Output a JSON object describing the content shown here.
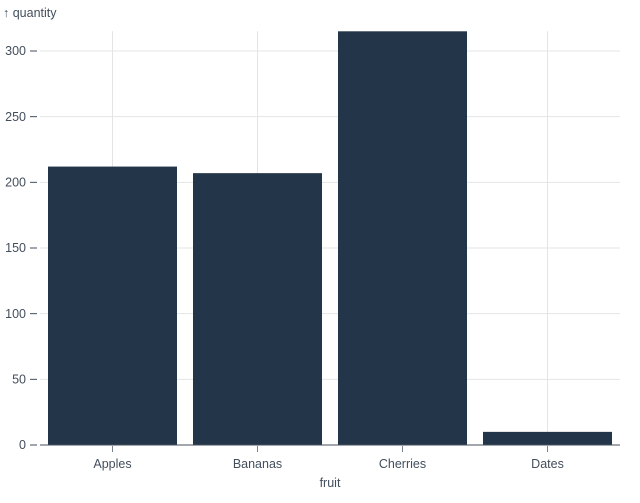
{
  "chart_data": {
    "type": "bar",
    "title": "",
    "y_axis_label": "↑ quantity",
    "x_axis_label": "fruit",
    "categories": [
      "Apples",
      "Bananas",
      "Cherries",
      "Dates"
    ],
    "values": [
      212,
      207,
      315,
      10
    ],
    "yticks": [
      0,
      50,
      100,
      150,
      200,
      250,
      300
    ],
    "ylim": [
      0,
      315
    ],
    "grid": true,
    "legend_position": "none",
    "colors": {
      "bar": "#233649",
      "gridline": "#e3e4e6",
      "axis_text": "#434e5c",
      "y_tick": "#434e5c",
      "x_tick": "#79828d",
      "baseline": "#454f5c",
      "background": "#ffffff"
    }
  }
}
